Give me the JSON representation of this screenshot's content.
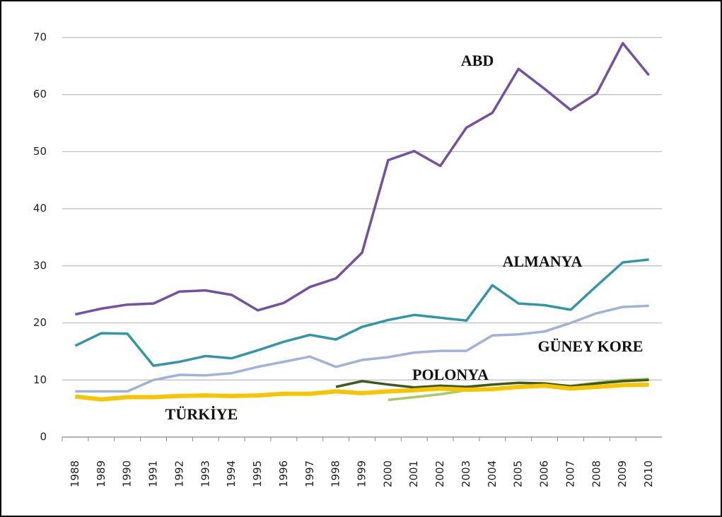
{
  "chart_data": {
    "type": "line",
    "categories": [
      "1988",
      "1989",
      "1990",
      "1991",
      "1992",
      "1993",
      "1994",
      "1995",
      "1996",
      "1997",
      "1998",
      "1999",
      "2000",
      "2001",
      "2002",
      "2003",
      "2004",
      "2005",
      "2006",
      "2007",
      "2008",
      "2009",
      "2010"
    ],
    "series": [
      {
        "name": "ABD",
        "color": "#7350a0",
        "values": [
          21.5,
          22.5,
          23.2,
          23.4,
          25.5,
          25.7,
          24.9,
          22.2,
          23.5,
          26.3,
          27.8,
          32.3,
          48.5,
          50.1,
          47.5,
          54.2,
          56.8,
          64.5,
          61,
          57.3,
          60.2,
          69,
          63.4
        ]
      },
      {
        "name": "ALMANYA",
        "color": "#3197a8",
        "values": [
          16,
          18.2,
          18.1,
          12.5,
          13.2,
          14.2,
          13.8,
          15.2,
          16.7,
          17.9,
          17.1,
          19.3,
          20.5,
          21.4,
          20.9,
          20.4,
          26.6,
          23.4,
          23.1,
          22.3,
          26.5,
          30.6,
          31.1
        ]
      },
      {
        "name": "GÜNEY KORE",
        "color": "#9fb2da",
        "values": [
          8,
          8,
          8,
          10,
          10.9,
          10.8,
          11.2,
          12.3,
          13.2,
          14.1,
          12.3,
          13.5,
          14,
          14.8,
          15.1,
          15.1,
          17.8,
          18,
          18.5,
          20,
          21.7,
          22.8,
          23
        ]
      },
      {
        "color": "#a8c964",
        "values": [
          null,
          null,
          null,
          null,
          null,
          null,
          null,
          null,
          null,
          null,
          null,
          null,
          6.5,
          7,
          7.5,
          8.2,
          8.5,
          8.8,
          9.2,
          9,
          9.5,
          10,
          10.2
        ]
      },
      {
        "name": "POLONYA",
        "color": "#3b5a1f",
        "values": [
          null,
          null,
          null,
          null,
          null,
          null,
          null,
          null,
          null,
          null,
          8.8,
          9.8,
          9.2,
          8.7,
          9,
          8.8,
          9.2,
          9.5,
          9.4,
          8.9,
          9.4,
          9.8,
          10
        ]
      },
      {
        "name": "TÜRKİYE",
        "color": "#f6c500",
        "values": [
          7.1,
          6.6,
          7,
          7,
          7.2,
          7.3,
          7.2,
          7.3,
          7.6,
          7.6,
          8,
          7.7,
          8,
          8.2,
          8.5,
          8.3,
          8.4,
          8.8,
          9,
          8.5,
          8.8,
          9.1,
          9.2
        ]
      }
    ],
    "ylim": [
      0,
      70
    ],
    "yticks": [
      0,
      10,
      20,
      30,
      40,
      50,
      60,
      70
    ],
    "grid": true
  }
}
